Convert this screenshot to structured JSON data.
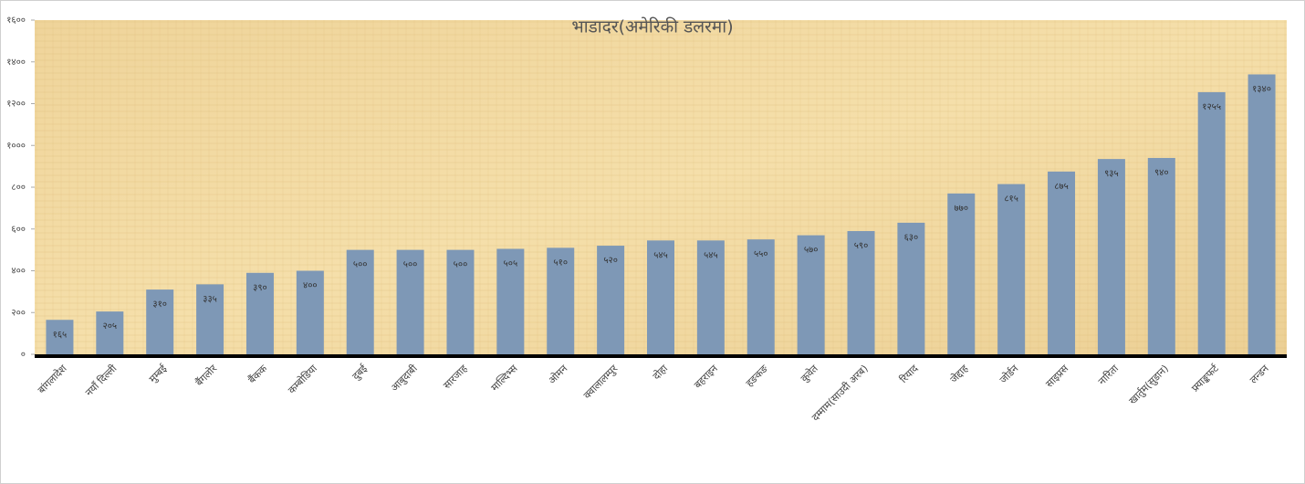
{
  "chart_data": {
    "type": "bar",
    "title": "भाडादर(अमेरिकी डलरमा)",
    "categories": [
      "बांगलादेश",
      "नयाँ दिल्ली",
      "मुम्बई",
      "बैंगलोर",
      "बैंकक",
      "कम्बोडिया",
      "दुबई",
      "आबुदाबी",
      "सारजाह",
      "माल्दिभ्स",
      "ओमन",
      "क्वालालम्पुर",
      "दोहा",
      "बहराइन",
      "हङकङ",
      "कुवेत",
      "दम्माम(साउदी अरब)",
      "रियाद",
      "जेद्दाह",
      "जोर्डन",
      "साइप्रस",
      "नारिता",
      "खार्तुम(सुडान)",
      "फ्र्याङ्कफर्ट",
      "लन्डन"
    ],
    "values": [
      165,
      205,
      310,
      335,
      390,
      400,
      500,
      500,
      500,
      505,
      510,
      520,
      545,
      545,
      550,
      570,
      590,
      630,
      770,
      815,
      875,
      935,
      940,
      1255,
      1340
    ],
    "value_labels": [
      "१६५",
      "२०५",
      "३१०",
      "३३५",
      "३९०",
      "४००",
      "५००",
      "५००",
      "५००",
      "५०५",
      "५१०",
      "५२०",
      "५४५",
      "५४५",
      "५५०",
      "५७०",
      "५९०",
      "६३०",
      "७७०",
      "८१५",
      "८७५",
      "९३५",
      "९४०",
      "१२५५",
      "१३४०"
    ],
    "color": "#7e98b6",
    "ylim": [
      0,
      1600
    ],
    "yticks": [
      {
        "value": 0,
        "label": "०"
      },
      {
        "value": 200,
        "label": "२००"
      },
      {
        "value": 400,
        "label": "४००"
      },
      {
        "value": 600,
        "label": "६००"
      },
      {
        "value": 800,
        "label": "८००"
      },
      {
        "value": 1000,
        "label": "१०००"
      },
      {
        "value": 1200,
        "label": "१२००"
      },
      {
        "value": 1400,
        "label": "१४००"
      },
      {
        "value": 1600,
        "label": "१६००"
      }
    ],
    "grid": false
  }
}
